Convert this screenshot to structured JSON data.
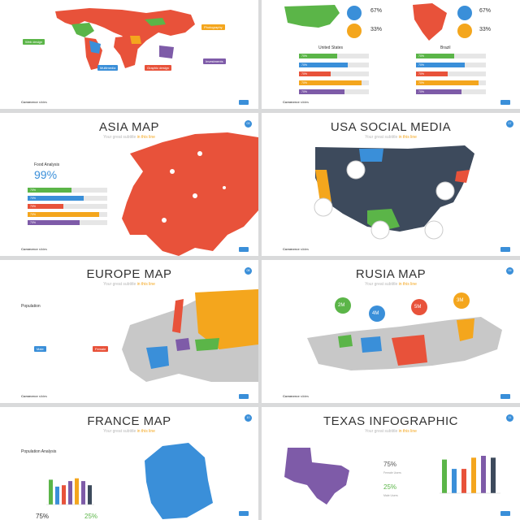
{
  "common": {
    "subtitle_prefix": "Your great subtitle",
    "subtitle_highlight": "in this line",
    "footer_brand": "Commerce",
    "footer_sub": "slides"
  },
  "slide1": {
    "tags": [
      "Web design",
      "Multimedia",
      "Graphic design",
      "Photography",
      "Investments"
    ]
  },
  "slide2": {
    "left": {
      "country": "United States",
      "male_pct": "67%",
      "female_pct": "33%"
    },
    "right": {
      "country": "Brazil",
      "male_pct": "67%",
      "female_pct": "33%"
    },
    "bar_label": "70%"
  },
  "slide3": {
    "title": "ASIA MAP",
    "section": "Food Analysis",
    "big_pct": "99%",
    "badge": "03",
    "bar_label": "70%"
  },
  "slide4": {
    "title": "USA SOCIAL MEDIA",
    "badge": "07"
  },
  "slide5": {
    "title": "EUROPE MAP",
    "section": "Population",
    "male_label": "Male",
    "female_label": "Female",
    "badge": "08"
  },
  "slide6": {
    "title": "RUSIA MAP",
    "pins": [
      "2M",
      "4M",
      "5M",
      "3M"
    ],
    "badge": "09"
  },
  "slide7": {
    "title": "FRANCE MAP",
    "section": "Population Analysis",
    "badge": "10",
    "pct_a": "75%",
    "pct_b": "25%"
  },
  "slide8": {
    "title": "TEXAS INFOGRAPHIC",
    "badge": "11",
    "male_pct": "75%",
    "male_label": "Female Users",
    "female_pct": "25%",
    "female_label": "Male Users"
  },
  "colors": {
    "red": "#e8523a",
    "blue": "#3a8fd9",
    "green": "#5bb548",
    "orange": "#f4a61d",
    "purple": "#7e5ba8",
    "navy": "#3d4a5c",
    "grey": "#c8c8c8"
  }
}
